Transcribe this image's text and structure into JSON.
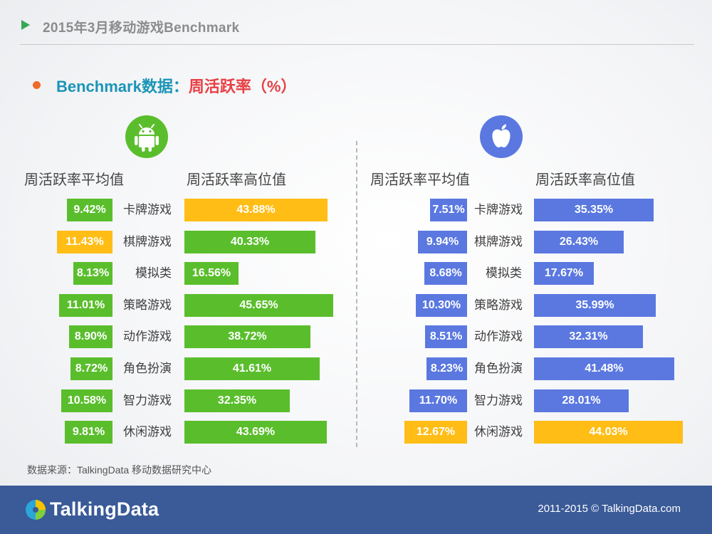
{
  "header": {
    "title": "2015年3月移动游戏Benchmark"
  },
  "subtitle": {
    "lead": "Benchmark数据：",
    "metric": "周活跃率（%）"
  },
  "source_note": "数据来源：TalkingData 移动数据研究中心",
  "footer": {
    "brand": "TalkingData",
    "copyright": "2011-2015 © TalkingData.com"
  },
  "colors": {
    "android_green": "#5abe2c",
    "ios_blue": "#5a78e0",
    "highlight_yellow": "#ffbd16",
    "title_blue": "#1b94b7",
    "title_red": "#e83f44",
    "footer_navy": "#3a5a98"
  },
  "chart_data": [
    {
      "type": "bar",
      "platform": "Android",
      "icon": "android-icon",
      "categories": [
        "卡牌游戏",
        "棋牌游戏",
        "模拟类",
        "策略游戏",
        "动作游戏",
        "角色扮演",
        "智力游戏",
        "休闲游戏"
      ],
      "series": [
        {
          "name": "周活跃率平均值",
          "values": [
            9.42,
            11.43,
            8.13,
            11.01,
            8.9,
            8.72,
            10.58,
            9.81
          ],
          "labels": [
            "9.42%",
            "11.43%",
            "8.13%",
            "11.01%",
            "8.90%",
            "8.72%",
            "10.58%",
            "9.81%"
          ],
          "highlight_index": 1
        },
        {
          "name": "周活跃率高位值",
          "values": [
            43.88,
            40.33,
            16.56,
            45.65,
            38.72,
            41.61,
            32.35,
            43.69
          ],
          "labels": [
            "43.88%",
            "40.33%",
            "16.56%",
            "45.65%",
            "38.72%",
            "41.61%",
            "32.35%",
            "43.69%"
          ],
          "highlight_index": 0
        }
      ]
    },
    {
      "type": "bar",
      "platform": "iOS",
      "icon": "apple-icon",
      "categories": [
        "卡牌游戏",
        "棋牌游戏",
        "模拟类",
        "策略游戏",
        "动作游戏",
        "角色扮演",
        "智力游戏",
        "休闲游戏"
      ],
      "series": [
        {
          "name": "周活跃率平均值",
          "values": [
            7.51,
            9.94,
            8.68,
            10.3,
            8.51,
            8.23,
            11.7,
            12.67
          ],
          "labels": [
            "7.51%",
            "9.94%",
            "8.68%",
            "10.30%",
            "8.51%",
            "8.23%",
            "11.70%",
            "12.67%"
          ],
          "highlight_index": 7
        },
        {
          "name": "周活跃率高位值",
          "values": [
            35.35,
            26.43,
            17.67,
            35.99,
            32.31,
            41.48,
            28.01,
            44.03
          ],
          "labels": [
            "35.35%",
            "26.43%",
            "17.67%",
            "35.99%",
            "32.31%",
            "41.48%",
            "28.01%",
            "44.03%"
          ],
          "highlight_index": 7
        }
      ]
    }
  ]
}
